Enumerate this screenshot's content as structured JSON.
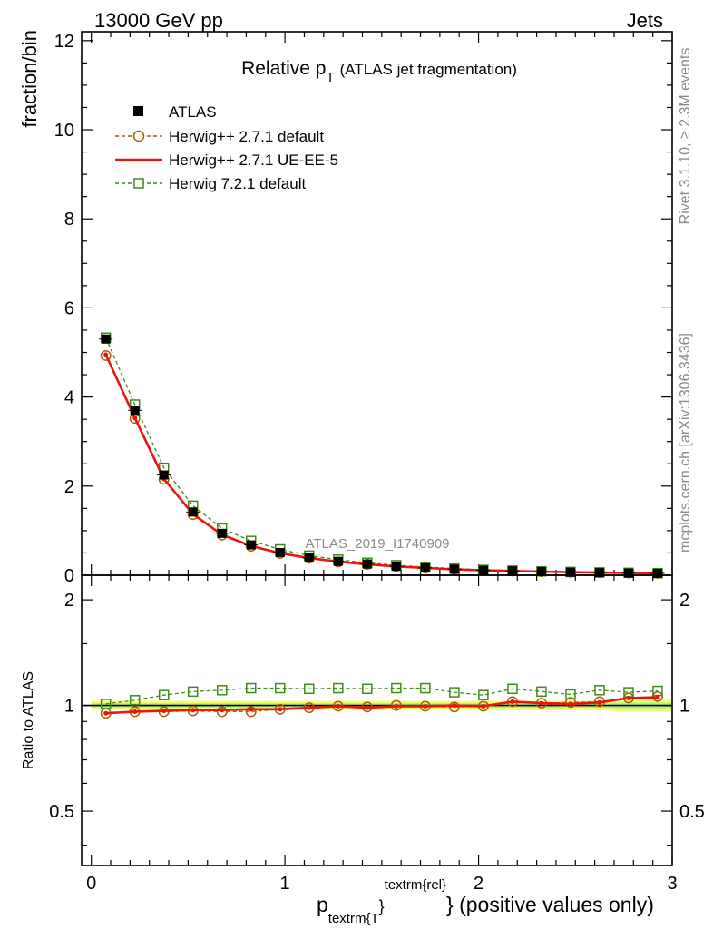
{
  "header": {
    "left": "13000 GeV pp",
    "right": "Jets"
  },
  "side_labels": {
    "upper": "Rivet 3.1.10, ≥ 2.3M events",
    "lower": "mcplots.cern.ch [arXiv:1306.3436]"
  },
  "chart_data": [
    {
      "type": "line",
      "title": "Relative p_T (ATLAS jet fragmentation)",
      "title_parts": {
        "main": "Relative p",
        "sub": "T",
        "rest": "(ATLAS jet fragmentation)"
      },
      "ylabel": "fraction/bin",
      "watermark": "ATLAS_2019_I1740909",
      "xlim": [
        -0.05,
        3.0
      ],
      "ylim": [
        0,
        12.2
      ],
      "yticks": [
        0,
        2,
        4,
        6,
        8,
        10,
        12
      ],
      "x": [
        0.075,
        0.225,
        0.375,
        0.525,
        0.675,
        0.825,
        0.975,
        1.125,
        1.275,
        1.425,
        1.575,
        1.725,
        1.875,
        2.025,
        2.175,
        2.325,
        2.475,
        2.625,
        2.775,
        2.925
      ],
      "legend": {
        "placement": "top-left",
        "entries": [
          "ATLAS",
          "Herwig++ 2.7.1 default",
          "Herwig++ 2.7.1 UE-EE-5",
          "Herwig 7.2.1 default"
        ]
      },
      "series": [
        {
          "name": "ATLAS",
          "style": "square-filled",
          "color": "#000000",
          "values": [
            5.3,
            3.7,
            2.25,
            1.42,
            0.94,
            0.68,
            0.51,
            0.39,
            0.31,
            0.25,
            0.2,
            0.165,
            0.135,
            0.11,
            0.095,
            0.08,
            0.068,
            0.058,
            0.05,
            0.043
          ]
        },
        {
          "name": "Herwig++ 2.7.1 default",
          "style": "circle-dashed",
          "color": "#b15c00",
          "values": [
            4.93,
            3.52,
            2.15,
            1.36,
            0.9,
            0.65,
            0.49,
            0.38,
            0.3,
            0.245,
            0.195,
            0.16,
            0.13,
            0.108,
            0.093,
            0.079,
            0.067,
            0.057,
            0.049,
            0.042
          ]
        },
        {
          "name": "Herwig++ 2.7.1 UE-EE-5",
          "style": "line-solid",
          "color": "#e8170d",
          "values": [
            4.95,
            3.53,
            2.16,
            1.37,
            0.91,
            0.655,
            0.495,
            0.385,
            0.305,
            0.245,
            0.198,
            0.162,
            0.133,
            0.109,
            0.095,
            0.081,
            0.069,
            0.059,
            0.051,
            0.044
          ]
        },
        {
          "name": "Herwig 7.2.1 default",
          "style": "square-dashed",
          "color": "#3d8c1a",
          "values": [
            5.33,
            3.83,
            2.41,
            1.56,
            1.05,
            0.77,
            0.58,
            0.44,
            0.35,
            0.28,
            0.225,
            0.185,
            0.15,
            0.12,
            0.105,
            0.088,
            0.074,
            0.064,
            0.055,
            0.047
          ]
        }
      ]
    },
    {
      "type": "line",
      "ylabel": "Ratio to ATLAS",
      "xlabel": "p_{textrm{T}}^{textrm{rel}} (positive values only)",
      "xlabel_parts": {
        "main": "p",
        "sub": "textrm{T",
        "sup": "textrm{rel}",
        "close": "}",
        "rest": "} (positive values only)"
      },
      "xlim": [
        -0.05,
        3.0
      ],
      "ylim": [
        0.35,
        2.35
      ],
      "yticks": [
        0.5,
        1,
        2
      ],
      "yticklabels": [
        "0.5",
        "1",
        "2"
      ],
      "xticks": [
        0,
        1,
        2,
        3
      ],
      "xticklabels": [
        "0",
        "1",
        "2",
        "3"
      ],
      "x": [
        0.075,
        0.225,
        0.375,
        0.525,
        0.675,
        0.825,
        0.975,
        1.125,
        1.275,
        1.425,
        1.575,
        1.725,
        1.875,
        2.025,
        2.175,
        2.325,
        2.475,
        2.625,
        2.775,
        2.925
      ],
      "band": {
        "outer": [
          0.03,
          0.03,
          0.03,
          0.03,
          0.03,
          0.03,
          0.03,
          0.03,
          0.03,
          0.03,
          0.03,
          0.03,
          0.03,
          0.03,
          0.03,
          0.03,
          0.03,
          0.03,
          0.04,
          0.04
        ],
        "inner": [
          0.015,
          0.015,
          0.015,
          0.015,
          0.015,
          0.015,
          0.015,
          0.015,
          0.015,
          0.015,
          0.015,
          0.015,
          0.015,
          0.015,
          0.015,
          0.015,
          0.015,
          0.015,
          0.02,
          0.02
        ]
      },
      "series": [
        {
          "name": "Herwig++ 2.7.1 default",
          "style": "circle-dashed",
          "color": "#b15c00",
          "values": [
            0.95,
            0.96,
            0.96,
            0.965,
            0.96,
            0.96,
            0.975,
            0.985,
            0.995,
            0.99,
            1.0,
            0.995,
            0.99,
            0.995,
            1.025,
            1.015,
            1.02,
            1.025,
            1.05,
            1.06
          ]
        },
        {
          "name": "Herwig++ 2.7.1 UE-EE-5",
          "style": "line-solid",
          "color": "#e8170d",
          "values": [
            0.95,
            0.96,
            0.965,
            0.97,
            0.97,
            0.975,
            0.975,
            0.985,
            0.995,
            0.985,
            0.995,
            0.995,
            1.0,
            0.995,
            1.025,
            1.015,
            1.01,
            1.02,
            1.05,
            1.055
          ]
        },
        {
          "name": "Herwig 7.2.1 default",
          "style": "square-dashed",
          "color": "#3d8c1a",
          "values": [
            1.01,
            1.035,
            1.07,
            1.095,
            1.105,
            1.12,
            1.12,
            1.115,
            1.12,
            1.115,
            1.12,
            1.12,
            1.09,
            1.07,
            1.115,
            1.095,
            1.075,
            1.105,
            1.09,
            1.1
          ]
        }
      ]
    }
  ]
}
